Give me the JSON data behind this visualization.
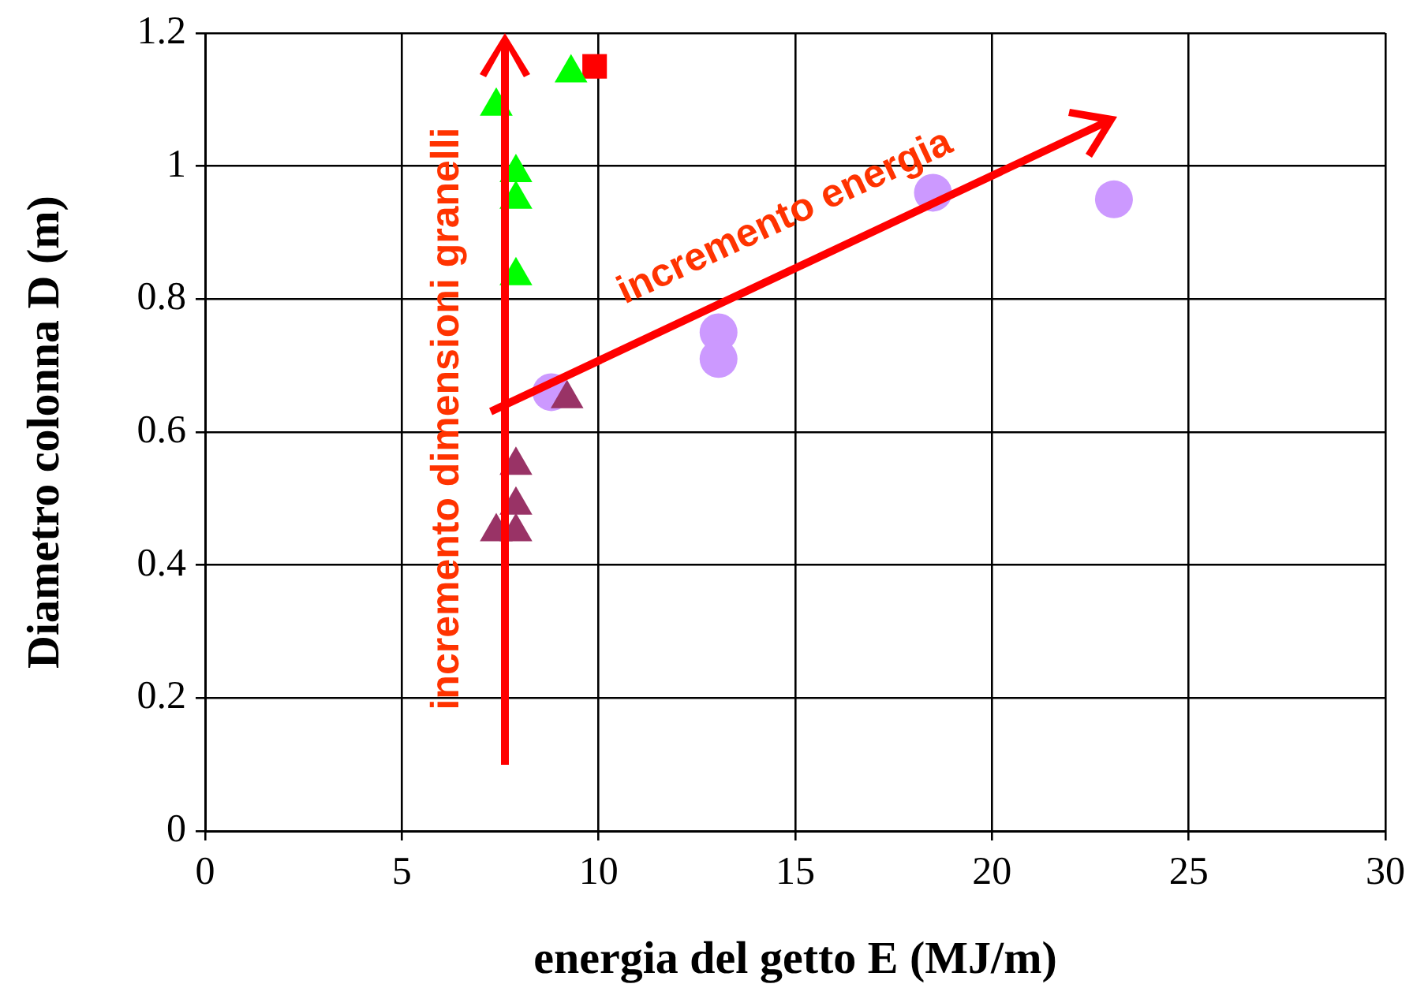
{
  "chart_data": {
    "type": "scatter",
    "xlabel": "energia del getto E (MJ/m)",
    "ylabel": "Diametro colonna D (m)",
    "xlim": [
      0,
      30
    ],
    "xticks": [
      0,
      5,
      10,
      15,
      20,
      25,
      30
    ],
    "ylim": [
      0,
      1.2
    ],
    "yticks": [
      0,
      0.2,
      0.4,
      0.6,
      0.8,
      1,
      1.2
    ],
    "grid": true,
    "legend": false,
    "annotations": [
      "incremento dimensioni granelli",
      "incremento energia"
    ],
    "series": [
      {
        "color": "#00ff00",
        "marker": "triangle",
        "x": [
          7.4,
          7.9,
          7.9,
          7.9,
          9.3
        ],
        "values": [
          1.09,
          0.99,
          0.95,
          0.835,
          1.14
        ]
      },
      {
        "color": "#ff0000",
        "marker": "square",
        "x": [
          9.9
        ],
        "values": [
          1.15
        ]
      },
      {
        "color": "#993366",
        "marker": "triangle",
        "x": [
          9.2,
          7.9,
          7.9,
          7.4,
          7.9
        ],
        "values": [
          0.65,
          0.55,
          0.49,
          0.45,
          0.45
        ]
      },
      {
        "color": "#cc99ff",
        "marker": "circle",
        "x": [
          8.8,
          13.05,
          13.05,
          18.5,
          23.1
        ],
        "values": [
          0.66,
          0.75,
          0.71,
          0.96,
          0.95
        ]
      }
    ]
  }
}
